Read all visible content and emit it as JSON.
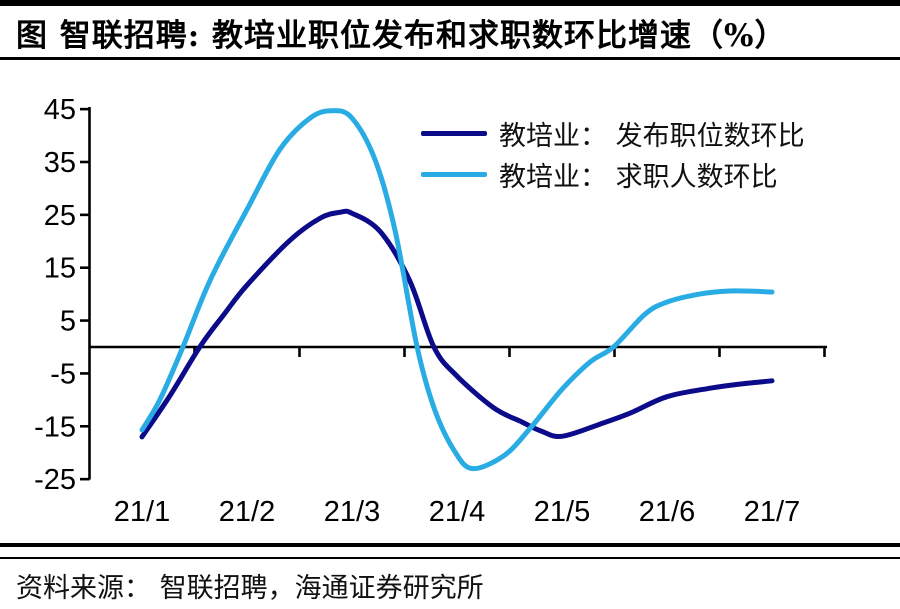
{
  "title": "图  智联招聘: 教培业职位发布和求职数环比增速（%）",
  "source": "资料来源： 智联招聘，海通证券研究所",
  "chart_data": {
    "type": "line",
    "title": "智联招聘: 教培业职位发布和求职数环比增速（%）",
    "xlabel": "",
    "ylabel": "",
    "unit": "%",
    "categories": [
      "21/1",
      "21/2",
      "21/3",
      "21/4",
      "21/5",
      "21/6",
      "21/7"
    ],
    "y_ticks": [
      45,
      35,
      25,
      15,
      5,
      -5,
      -15,
      -25
    ],
    "ylim": [
      -25,
      45
    ],
    "grid": false,
    "zero_line": true,
    "legend_position": "top-right",
    "axis_color": "#000000",
    "series": [
      {
        "name": "教培业： 发布职位数环比",
        "color": "#0C0C8A",
        "values": [
          -17,
          12,
          25,
          -5.5,
          -17,
          -9.5,
          -6.5
        ],
        "curve_samples": [
          [
            1,
            -17
          ],
          [
            1.27,
            -9.1
          ],
          [
            1.55,
            0
          ],
          [
            1.79,
            6.4
          ],
          [
            2,
            11.7
          ],
          [
            2.41,
            20.2
          ],
          [
            2.7,
            24.4
          ],
          [
            2.89,
            25.5
          ],
          [
            3,
            25.3
          ],
          [
            3.27,
            21.8
          ],
          [
            3.55,
            12.5
          ],
          [
            3.78,
            0
          ],
          [
            4,
            -5.5
          ],
          [
            4.35,
            -11.5
          ],
          [
            4.62,
            -14.2
          ],
          [
            4.8,
            -15.9
          ],
          [
            5,
            -16.9
          ],
          [
            5.36,
            -14.6
          ],
          [
            5.65,
            -12.5
          ],
          [
            6,
            -9.4
          ],
          [
            6.41,
            -7.8
          ],
          [
            6.7,
            -7
          ],
          [
            7,
            -6.4
          ]
        ]
      },
      {
        "name": "教培业： 求职人数环比",
        "color": "#29ACE3",
        "values": [
          -15.5,
          26,
          43.5,
          -20,
          -8,
          8.5,
          10.5
        ],
        "curve_samples": [
          [
            1,
            -15.7
          ],
          [
            1.17,
            -10
          ],
          [
            1.39,
            0
          ],
          [
            1.65,
            12.7
          ],
          [
            2,
            26
          ],
          [
            2.31,
            37.3
          ],
          [
            2.6,
            43.3
          ],
          [
            2.81,
            44.7
          ],
          [
            3,
            43.3
          ],
          [
            3.22,
            35.4
          ],
          [
            3.41,
            22
          ],
          [
            3.62,
            0
          ],
          [
            3.79,
            -12
          ],
          [
            3.98,
            -19.8
          ],
          [
            4.15,
            -23
          ],
          [
            4.45,
            -20.5
          ],
          [
            4.7,
            -15.3
          ],
          [
            5,
            -8
          ],
          [
            5.27,
            -2.8
          ],
          [
            5.49,
            0
          ],
          [
            5.79,
            6.2
          ],
          [
            6,
            8.5
          ],
          [
            6.31,
            10
          ],
          [
            6.6,
            10.6
          ],
          [
            7,
            10.4
          ]
        ]
      }
    ]
  }
}
